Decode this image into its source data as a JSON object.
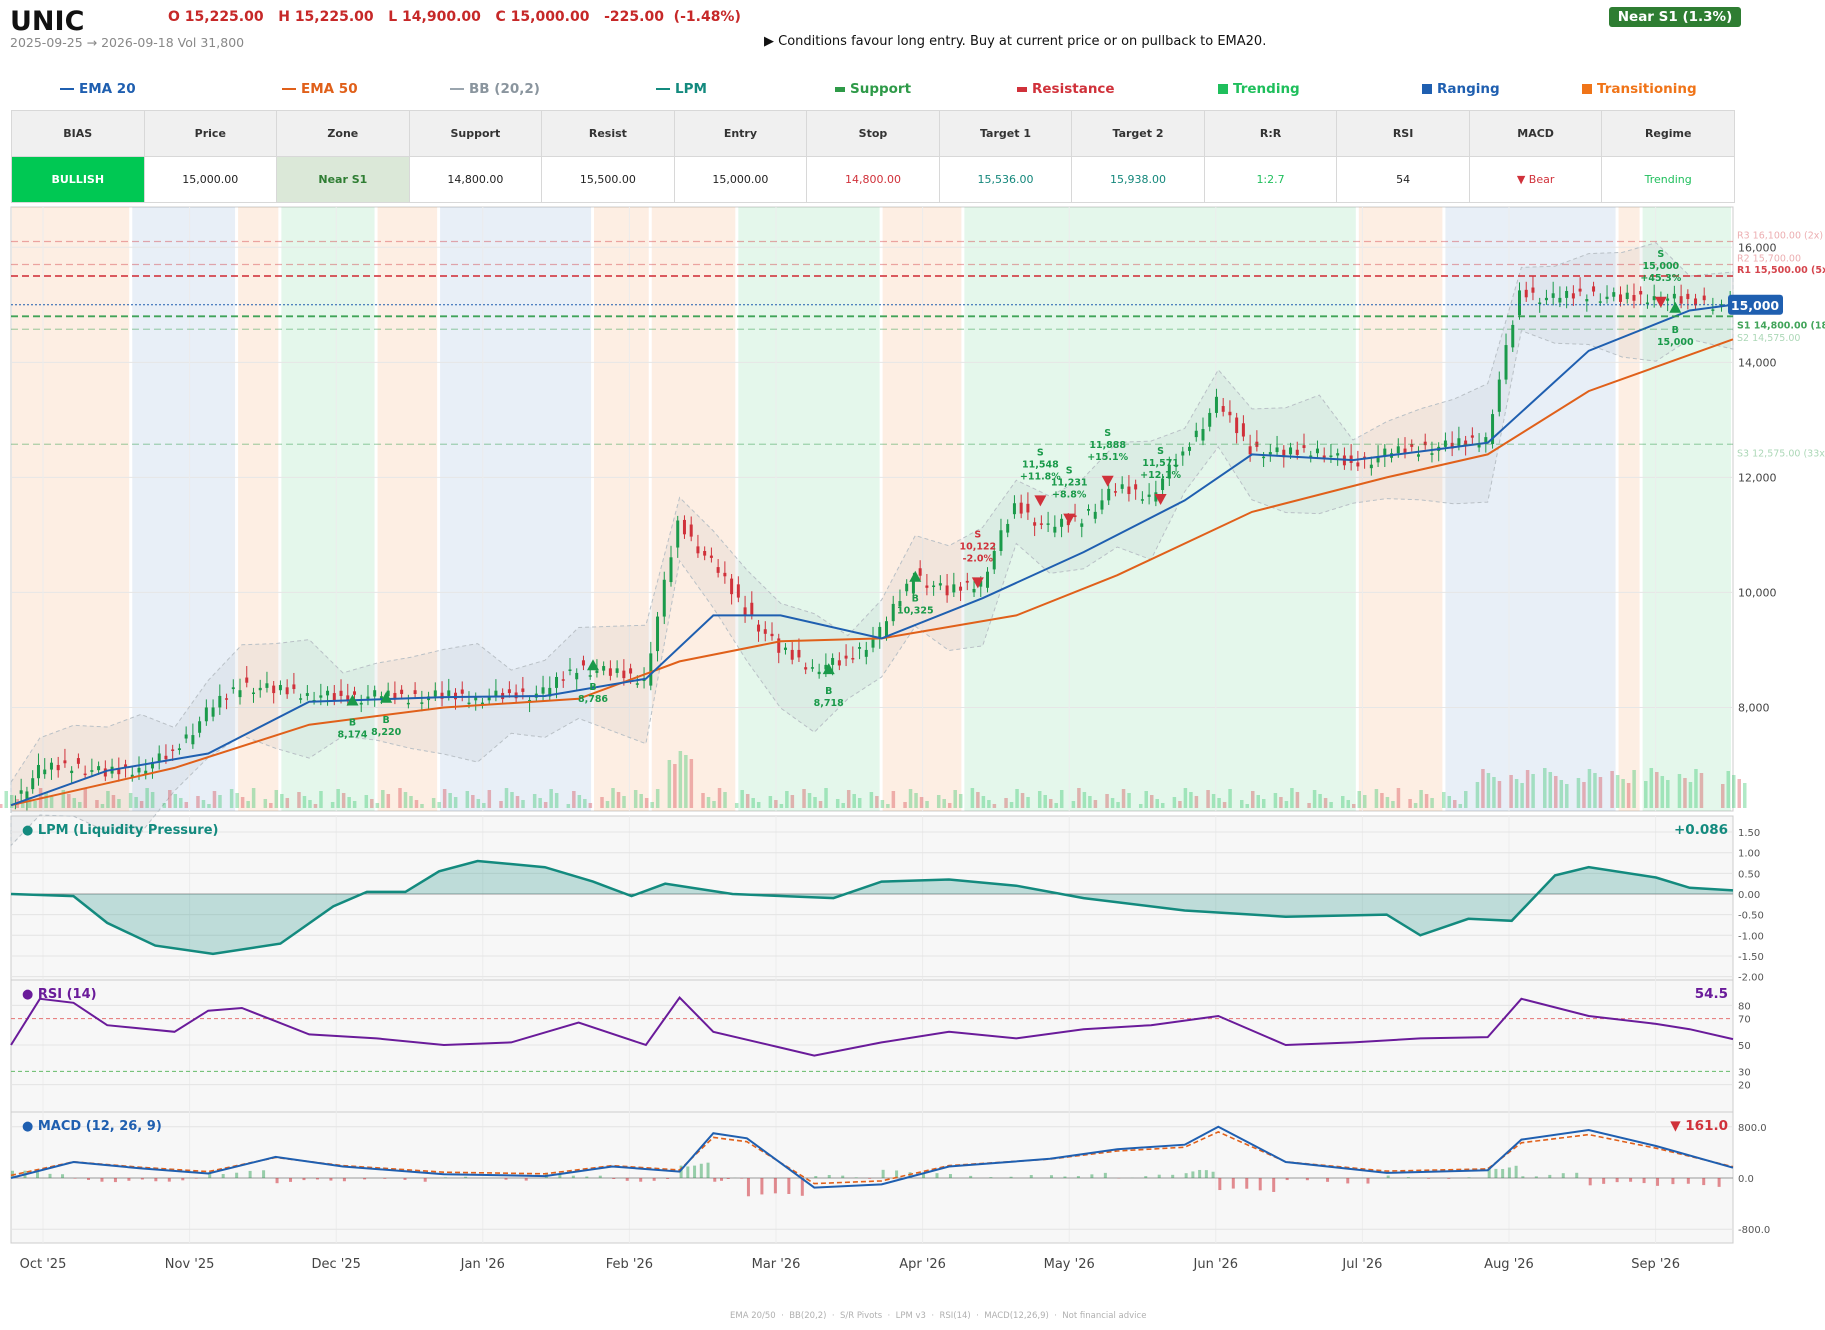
{
  "header": {
    "ticker": "UNIC",
    "ohlc": "O 15,225.00   H 15,225.00   L 14,900.00   C 15,000.00   -225.00  (-1.48%)",
    "range_line": "2025-09-25 → 2026-09-18   Vol 31,800",
    "advice": "▶  Conditions favour long entry. Buy at current price or on pullback to EMA20.",
    "badge": "Near S1  (1.3%)"
  },
  "legend": [
    {
      "label": "EMA 20",
      "color": "#1f5fb0",
      "kind": "line"
    },
    {
      "label": "EMA 50",
      "color": "#e0601a",
      "kind": "line"
    },
    {
      "label": "BB (20,2)",
      "color": "#9aa5ae",
      "kind": "line"
    },
    {
      "label": "LPM",
      "color": "#138a7e",
      "kind": "line"
    },
    {
      "label": "Support",
      "color": "#2e9a48",
      "kind": "dash"
    },
    {
      "label": "Resistance",
      "color": "#d0313a",
      "kind": "dash"
    },
    {
      "label": "Trending",
      "color": "#1fbf5c",
      "kind": "square"
    },
    {
      "label": "Ranging",
      "color": "#1f5fb0",
      "kind": "square"
    },
    {
      "label": "Transitioning",
      "color": "#f07418",
      "kind": "square"
    }
  ],
  "summary": {
    "headers": [
      "BIAS",
      "Price",
      "Zone",
      "Support",
      "Resist",
      "Entry",
      "Stop",
      "Target 1",
      "Target 2",
      "R:R",
      "RSI",
      "MACD",
      "Regime"
    ],
    "values": [
      "BULLISH",
      "15,000.00",
      "Near S1",
      "14,800.00",
      "15,500.00",
      "15,000.00",
      "14,800.00",
      "15,536.00",
      "15,938.00",
      "1:2.7",
      "54",
      "▼ Bear",
      "Trending"
    ],
    "colors": {
      "bias_bg": "#00c853",
      "zone_bg": "#dbe8d8",
      "zone_text": "#2e7d32",
      "stop": "#d0313a",
      "target": "#13877b",
      "rr": "#1fbf5c",
      "macd": "#d0313a",
      "regime": "#1fbf5c"
    }
  },
  "panels": {
    "lpm": {
      "title": "● LPM (Liquidity Pressure)",
      "value": "+0.086",
      "ticks": [
        "1.50",
        "1.00",
        "0.50",
        "0.00",
        "-0.50",
        "-1.00",
        "-1.50",
        "-2.00"
      ]
    },
    "rsi": {
      "title": "● RSI (14)",
      "value": "54.5",
      "ticks": [
        "80",
        "70",
        "50",
        "30",
        "20"
      ]
    },
    "macd": {
      "title": "● MACD (12, 26, 9)",
      "value": "▼ 161.0",
      "ticks": [
        "800.0",
        "0.0",
        "-800.0"
      ]
    }
  },
  "footer_note": "EMA 20/50  ·  BB(20,2)  ·  S/R Pivots  ·  LPM v3  ·  RSI(14)  ·  MACD(12,26,9)  ·  Not financial advice",
  "chart_data": {
    "type": "candlestick",
    "x_start": "2025-09-25",
    "x_end": "2026-09-18",
    "x_tick_labels": [
      "Oct '25",
      "Nov '25",
      "Dec '25",
      "Jan '26",
      "Feb '26",
      "Mar '26",
      "Apr '26",
      "May '26",
      "Jun '26",
      "Jul '26",
      "Aug '26",
      "Sep '26"
    ],
    "y_tick_labels": [
      "16,000",
      "14,000",
      "12,000",
      "10,000",
      "8,000"
    ],
    "ylim": [
      6200,
      16700
    ],
    "last_price_label": "15,000",
    "close_path": [
      [
        "2025-09-25",
        6250
      ],
      [
        "2025-10-01",
        6900
      ],
      [
        "2025-10-08",
        7000
      ],
      [
        "2025-10-15",
        6850
      ],
      [
        "2025-10-22",
        6950
      ],
      [
        "2025-10-29",
        7200
      ],
      [
        "2025-11-05",
        7900
      ],
      [
        "2025-11-12",
        8400
      ],
      [
        "2025-11-19",
        8300
      ],
      [
        "2025-11-26",
        8250
      ],
      [
        "2025-12-03",
        8150
      ],
      [
        "2025-12-10",
        8200
      ],
      [
        "2025-12-17",
        8180
      ],
      [
        "2025-12-24",
        8200
      ],
      [
        "2025-12-31",
        8180
      ],
      [
        "2026-01-07",
        8200
      ],
      [
        "2026-01-14",
        8250
      ],
      [
        "2026-01-21",
        8700
      ],
      [
        "2026-01-28",
        8600
      ],
      [
        "2026-02-04",
        8500
      ],
      [
        "2026-02-11",
        11200
      ],
      [
        "2026-02-18",
        10500
      ],
      [
        "2026-02-25",
        9700
      ],
      [
        "2026-03-04",
        9000
      ],
      [
        "2026-03-11",
        8700
      ],
      [
        "2026-03-18",
        8800
      ],
      [
        "2026-03-25",
        9300
      ],
      [
        "2026-04-01",
        10300
      ],
      [
        "2026-04-08",
        10000
      ],
      [
        "2026-04-15",
        10200
      ],
      [
        "2026-04-22",
        11500
      ],
      [
        "2026-04-29",
        11100
      ],
      [
        "2026-05-06",
        11300
      ],
      [
        "2026-05-13",
        11800
      ],
      [
        "2026-05-20",
        11700
      ],
      [
        "2026-05-27",
        12400
      ],
      [
        "2026-06-03",
        13300
      ],
      [
        "2026-06-10",
        12500
      ],
      [
        "2026-06-17",
        12400
      ],
      [
        "2026-06-24",
        12500
      ],
      [
        "2026-07-01",
        12200
      ],
      [
        "2026-07-08",
        12400
      ],
      [
        "2026-07-15",
        12500
      ],
      [
        "2026-07-22",
        12550
      ],
      [
        "2026-07-29",
        12700
      ],
      [
        "2026-08-05",
        15200
      ],
      [
        "2026-08-12",
        15100
      ],
      [
        "2026-08-19",
        15200
      ],
      [
        "2026-08-26",
        15100
      ],
      [
        "2026-09-02",
        15150
      ],
      [
        "2026-09-09",
        15050
      ],
      [
        "2026-09-18",
        15000
      ]
    ],
    "ema20": [
      [
        "2025-09-25",
        6300
      ],
      [
        "2025-10-15",
        6900
      ],
      [
        "2025-11-05",
        7200
      ],
      [
        "2025-11-26",
        8100
      ],
      [
        "2025-12-24",
        8180
      ],
      [
        "2026-01-14",
        8200
      ],
      [
        "2026-02-04",
        8500
      ],
      [
        "2026-02-18",
        9600
      ],
      [
        "2026-03-04",
        9600
      ],
      [
        "2026-03-25",
        9200
      ],
      [
        "2026-04-15",
        9900
      ],
      [
        "2026-05-06",
        10700
      ],
      [
        "2026-05-27",
        11600
      ],
      [
        "2026-06-10",
        12400
      ],
      [
        "2026-07-01",
        12300
      ],
      [
        "2026-07-29",
        12600
      ],
      [
        "2026-08-19",
        14200
      ],
      [
        "2026-09-09",
        14900
      ],
      [
        "2026-09-18",
        15000
      ]
    ],
    "ema50": [
      [
        "2025-09-25",
        6300
      ],
      [
        "2025-10-29",
        6950
      ],
      [
        "2025-11-26",
        7700
      ],
      [
        "2025-12-24",
        8000
      ],
      [
        "2026-01-21",
        8150
      ],
      [
        "2026-02-11",
        8800
      ],
      [
        "2026-03-04",
        9150
      ],
      [
        "2026-03-25",
        9200
      ],
      [
        "2026-04-22",
        9600
      ],
      [
        "2026-05-13",
        10300
      ],
      [
        "2026-06-10",
        11400
      ],
      [
        "2026-07-08",
        12000
      ],
      [
        "2026-07-29",
        12400
      ],
      [
        "2026-08-19",
        13500
      ],
      [
        "2026-09-18",
        14400
      ]
    ],
    "regimes": [
      {
        "from": "2025-09-25",
        "to": "2025-10-20",
        "regime": "Transitioning"
      },
      {
        "from": "2025-10-20",
        "to": "2025-11-11",
        "regime": "Ranging"
      },
      {
        "from": "2025-11-11",
        "to": "2025-11-20",
        "regime": "Transitioning"
      },
      {
        "from": "2025-11-20",
        "to": "2025-12-10",
        "regime": "Trending"
      },
      {
        "from": "2025-12-10",
        "to": "2025-12-23",
        "regime": "Transitioning"
      },
      {
        "from": "2025-12-23",
        "to": "2026-01-24",
        "regime": "Ranging"
      },
      {
        "from": "2026-01-24",
        "to": "2026-02-05",
        "regime": "Transitioning"
      },
      {
        "from": "2026-02-05",
        "to": "2026-02-23",
        "regime": "Transitioning"
      },
      {
        "from": "2026-02-23",
        "to": "2026-03-25",
        "regime": "Trending"
      },
      {
        "from": "2026-03-25",
        "to": "2026-04-11",
        "regime": "Transitioning"
      },
      {
        "from": "2026-04-11",
        "to": "2026-07-02",
        "regime": "Trending"
      },
      {
        "from": "2026-07-02",
        "to": "2026-07-20",
        "regime": "Transitioning"
      },
      {
        "from": "2026-07-20",
        "to": "2026-08-25",
        "regime": "Ranging"
      },
      {
        "from": "2026-08-25",
        "to": "2026-08-30",
        "regime": "Transitioning"
      },
      {
        "from": "2026-08-30",
        "to": "2026-09-18",
        "regime": "Trending"
      }
    ],
    "levels": [
      {
        "label": "R3 16,100.00 (2x)",
        "value": 16100,
        "kind": "resistance",
        "strength": "faint"
      },
      {
        "label": "R2 15,700.00",
        "value": 15700,
        "kind": "resistance",
        "strength": "faint"
      },
      {
        "label": "R1 15,500.00 (5x)",
        "value": 15500,
        "kind": "resistance",
        "strength": "strong"
      },
      {
        "label": "S1 14,800.00 (18x)",
        "value": 14800,
        "kind": "support",
        "strength": "strong"
      },
      {
        "label": "S2 14,575.00",
        "value": 14575,
        "kind": "support",
        "strength": "faint"
      },
      {
        "label": "S3 12,575.00 (33x)",
        "value": 12575,
        "kind": "support",
        "strength": "faint"
      }
    ],
    "signals": [
      {
        "date": "2025-12-05",
        "side": "B",
        "price_label": "8,174",
        "pct": "",
        "price": 8174
      },
      {
        "date": "2025-12-12",
        "side": "B",
        "price_label": "8,220",
        "pct": "",
        "price": 8220
      },
      {
        "date": "2026-01-24",
        "side": "B",
        "price_label": "8,786",
        "pct": "",
        "price": 8786
      },
      {
        "date": "2026-03-14",
        "side": "B",
        "price_label": "8,718",
        "pct": "",
        "price": 8718
      },
      {
        "date": "2026-04-01",
        "side": "B",
        "price_label": "10,325",
        "pct": "",
        "price": 10325
      },
      {
        "date": "2026-04-14",
        "side": "S",
        "price_label": "10,122",
        "pct": "-2.0%",
        "price": 10122
      },
      {
        "date": "2026-04-27",
        "side": "S",
        "price_label": "11,548",
        "pct": "+11.8%",
        "price": 11548
      },
      {
        "date": "2026-05-03",
        "side": "S",
        "price_label": "11,231",
        "pct": "+8.8%",
        "price": 11231
      },
      {
        "date": "2026-05-11",
        "side": "S",
        "price_label": "11,888",
        "pct": "+15.1%",
        "price": 11888
      },
      {
        "date": "2026-05-22",
        "side": "S",
        "price_label": "11,571",
        "pct": "+12.1%",
        "price": 11571
      },
      {
        "date": "2026-09-03",
        "side": "S",
        "price_label": "15,000",
        "pct": "+45.3%",
        "price": 15000
      },
      {
        "date": "2026-09-06",
        "side": "B",
        "price_label": "15,000",
        "pct": "",
        "price": 15000
      }
    ],
    "lpm": [
      [
        "2025-09-25",
        0.0
      ],
      [
        "2025-10-08",
        -0.05
      ],
      [
        "2025-10-15",
        -0.7
      ],
      [
        "2025-10-25",
        -1.25
      ],
      [
        "2025-11-06",
        -1.45
      ],
      [
        "2025-11-20",
        -1.2
      ],
      [
        "2025-12-01",
        -0.3
      ],
      [
        "2025-12-08",
        0.05
      ],
      [
        "2025-12-16",
        0.05
      ],
      [
        "2025-12-23",
        0.55
      ],
      [
        "2025-12-31",
        0.8
      ],
      [
        "2026-01-14",
        0.65
      ],
      [
        "2026-01-24",
        0.3
      ],
      [
        "2026-02-01",
        -0.05
      ],
      [
        "2026-02-08",
        0.25
      ],
      [
        "2026-02-22",
        0.0
      ],
      [
        "2026-03-15",
        -0.1
      ],
      [
        "2026-03-25",
        0.3
      ],
      [
        "2026-04-08",
        0.35
      ],
      [
        "2026-04-22",
        0.2
      ],
      [
        "2026-05-06",
        -0.1
      ],
      [
        "2026-05-27",
        -0.4
      ],
      [
        "2026-06-17",
        -0.55
      ],
      [
        "2026-07-08",
        -0.5
      ],
      [
        "2026-07-15",
        -1.0
      ],
      [
        "2026-07-25",
        -0.6
      ],
      [
        "2026-08-03",
        -0.65
      ],
      [
        "2026-08-12",
        0.45
      ],
      [
        "2026-08-19",
        0.65
      ],
      [
        "2026-09-02",
        0.4
      ],
      [
        "2026-09-09",
        0.15
      ],
      [
        "2026-09-18",
        0.086
      ]
    ],
    "rsi": [
      [
        "2025-09-25",
        50
      ],
      [
        "2025-10-01",
        85
      ],
      [
        "2025-10-08",
        82
      ],
      [
        "2025-10-15",
        65
      ],
      [
        "2025-10-29",
        60
      ],
      [
        "2025-11-05",
        76
      ],
      [
        "2025-11-12",
        78
      ],
      [
        "2025-11-19",
        68
      ],
      [
        "2025-11-26",
        58
      ],
      [
        "2025-12-10",
        55
      ],
      [
        "2025-12-24",
        50
      ],
      [
        "2026-01-07",
        52
      ],
      [
        "2026-01-21",
        67
      ],
      [
        "2026-02-04",
        50
      ],
      [
        "2026-02-11",
        86
      ],
      [
        "2026-02-18",
        60
      ],
      [
        "2026-03-04",
        48
      ],
      [
        "2026-03-11",
        42
      ],
      [
        "2026-03-25",
        52
      ],
      [
        "2026-04-08",
        60
      ],
      [
        "2026-04-22",
        55
      ],
      [
        "2026-05-06",
        62
      ],
      [
        "2026-05-20",
        65
      ],
      [
        "2026-06-03",
        72
      ],
      [
        "2026-06-17",
        50
      ],
      [
        "2026-07-01",
        52
      ],
      [
        "2026-07-15",
        55
      ],
      [
        "2026-07-29",
        56
      ],
      [
        "2026-08-05",
        85
      ],
      [
        "2026-08-19",
        72
      ],
      [
        "2026-09-02",
        66
      ],
      [
        "2026-09-09",
        62
      ],
      [
        "2026-09-18",
        54.5
      ]
    ],
    "macd": [
      [
        "2025-09-25",
        0
      ],
      [
        "2025-10-08",
        250
      ],
      [
        "2025-10-22",
        150
      ],
      [
        "2025-11-05",
        70
      ],
      [
        "2025-11-19",
        330
      ],
      [
        "2025-12-03",
        180
      ],
      [
        "2025-12-24",
        60
      ],
      [
        "2026-01-14",
        30
      ],
      [
        "2026-01-28",
        180
      ],
      [
        "2026-02-11",
        100
      ],
      [
        "2026-02-18",
        700
      ],
      [
        "2026-02-25",
        620
      ],
      [
        "2026-03-11",
        -150
      ],
      [
        "2026-03-25",
        -100
      ],
      [
        "2026-04-08",
        180
      ],
      [
        "2026-04-29",
        300
      ],
      [
        "2026-05-13",
        450
      ],
      [
        "2026-05-27",
        520
      ],
      [
        "2026-06-03",
        800
      ],
      [
        "2026-06-17",
        250
      ],
      [
        "2026-07-08",
        80
      ],
      [
        "2026-07-29",
        120
      ],
      [
        "2026-08-05",
        600
      ],
      [
        "2026-08-19",
        750
      ],
      [
        "2026-09-02",
        500
      ],
      [
        "2026-09-18",
        161
      ]
    ]
  }
}
